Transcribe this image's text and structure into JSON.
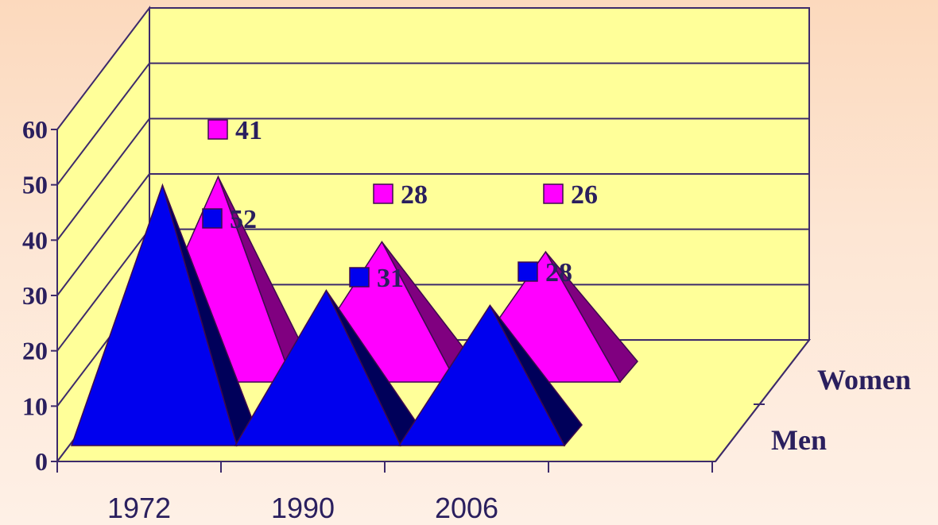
{
  "chart_data": {
    "type": "bar",
    "bar_shape": "pyramid",
    "three_d": true,
    "categories": [
      "1972",
      "1990",
      "2006"
    ],
    "series": [
      {
        "name": "Men",
        "values": [
          52,
          31,
          28
        ],
        "color": "#0000ee"
      },
      {
        "name": "Women",
        "values": [
          41,
          28,
          26
        ],
        "color": "#ff00ff"
      }
    ],
    "ylim": [
      0,
      60
    ],
    "yticks": [
      "0",
      "10",
      "20",
      "30",
      "40",
      "50",
      "60"
    ],
    "title": "",
    "xlabel": "",
    "ylabel": "",
    "grid": true,
    "colors": {
      "wall": "#ffff99",
      "grid_line": "#3d2a6b",
      "text": "#2a1f5e"
    }
  }
}
